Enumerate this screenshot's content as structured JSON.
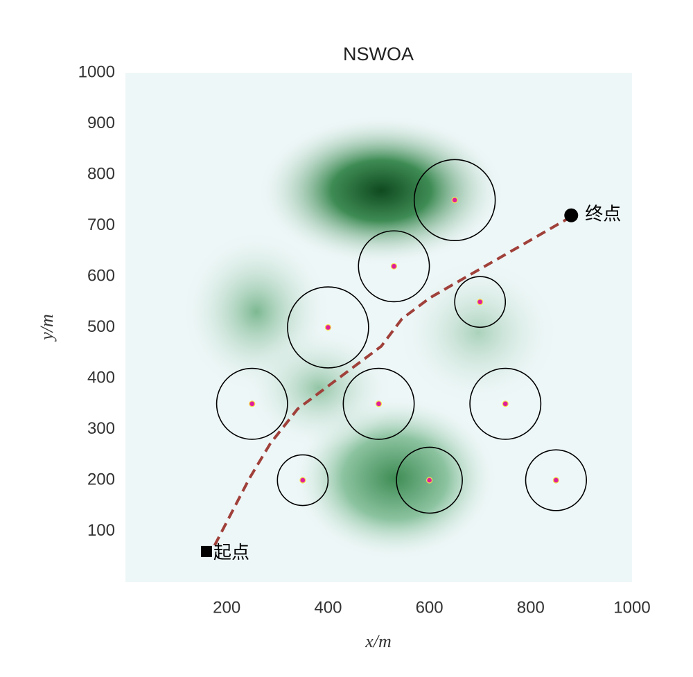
{
  "chart_data": {
    "type": "path-planning",
    "title": "NSWOA",
    "x_label": "x/m",
    "y_label": "y/m",
    "xlim": [
      0,
      1000
    ],
    "ylim": [
      0,
      1000
    ],
    "xticks": [
      200,
      400,
      600,
      800,
      1000
    ],
    "yticks": [
      100,
      200,
      300,
      400,
      500,
      600,
      700,
      800,
      900,
      1000
    ],
    "threats": {
      "x": [
        650,
        530,
        700,
        400,
        250,
        500,
        750,
        350,
        600,
        850
      ],
      "y": [
        750,
        620,
        550,
        500,
        350,
        350,
        350,
        200,
        200,
        200
      ],
      "r": [
        80,
        70,
        50,
        80,
        70,
        70,
        70,
        50,
        65,
        60
      ],
      "color": "#000000",
      "center_color": "#e0209a"
    },
    "start": {
      "x": 160,
      "y": 60,
      "label": "起点"
    },
    "end": {
      "x": 880,
      "y": 720,
      "label": "终点"
    },
    "series": [
      {
        "color": "#a0403a",
        "x": [
          176,
          245,
          286,
          340,
          395,
          450,
          505,
          546,
          601,
          683,
          792,
          874
        ],
        "y": [
          72,
          204,
          272,
          340,
          381,
          422,
          463,
          517,
          558,
          605,
          667,
          714
        ]
      }
    ]
  }
}
